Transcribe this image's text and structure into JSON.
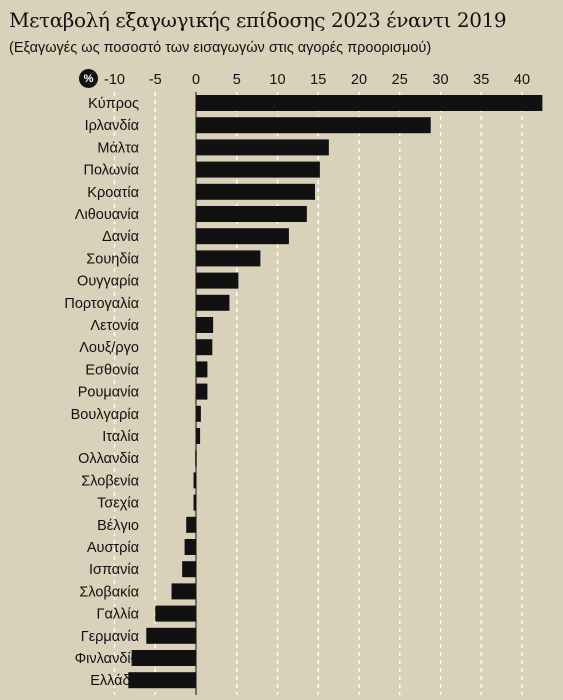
{
  "title": "Μεταβολή εξαγωγικής επίδοσης 2023 έναντι 2019",
  "subtitle": "(Εξαγωγές ως ποσοστό των εισαγωγών στις αγορές προορισμού)",
  "unit": "%",
  "colors": {
    "background": "#d9d1b9",
    "bar": "#111111",
    "grid": "#ffffff"
  },
  "chart_data": {
    "type": "bar",
    "orientation": "horizontal",
    "title": "Μεταβολή εξαγωγικής επίδοσης 2023 έναντι 2019",
    "subtitle": "(Εξαγωγές ως ποσοστό των εισαγωγών στις αγορές προορισμού)",
    "unit": "%",
    "xlim": [
      -10,
      42
    ],
    "xticks": [
      -10,
      -5,
      0,
      5,
      10,
      15,
      20,
      25,
      30,
      35,
      40
    ],
    "xtick_labels": [
      "-10",
      "-5",
      "0",
      "5",
      "10",
      "15",
      "20",
      "25",
      "30",
      "35",
      "40"
    ],
    "grid": "vertical dashed",
    "categories": [
      "Κύπρος",
      "Ιρλανδία",
      "Μάλτα",
      "Πολωνία",
      "Κροατία",
      "Λιθουανία",
      "Δανία",
      "Σουηδία",
      "Ουγγαρία",
      "Πορτογαλία",
      "Λετονία",
      "Λουξ/ργο",
      "Εσθονία",
      "Ρουμανία",
      "Βουλγαρία",
      "Ιταλία",
      "Ολλανδία",
      "Σλοβενία",
      "Τσεχία",
      "Βέλγιο",
      "Αυστρία",
      "Ισπανία",
      "Σλοβακία",
      "Γαλλία",
      "Γερμανία",
      "Φινλανδία",
      "Ελλάδα"
    ],
    "values": [
      42.5,
      28.8,
      16.3,
      15.2,
      14.6,
      13.6,
      11.4,
      7.9,
      5.2,
      4.1,
      2.1,
      2.0,
      1.4,
      1.4,
      0.6,
      0.5,
      -0.1,
      -0.3,
      -0.3,
      -1.2,
      -1.4,
      -1.7,
      -3.0,
      -5.0,
      -6.1,
      -7.9,
      -8.3
    ]
  }
}
